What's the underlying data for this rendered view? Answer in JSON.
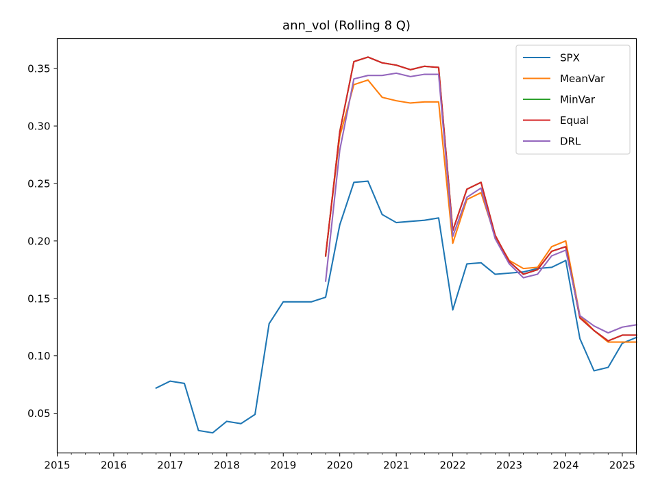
{
  "chart_data": {
    "type": "line",
    "title": "ann_vol (Rolling 8 Q)",
    "xlabel": "",
    "ylabel": "",
    "xlim": [
      2015.0,
      2025.25
    ],
    "ylim": [
      0.0155,
      0.376
    ],
    "x_ticks": [
      2015,
      2016,
      2017,
      2018,
      2019,
      2020,
      2021,
      2022,
      2023,
      2024,
      2025
    ],
    "y_ticks": [
      0.05,
      0.1,
      0.15,
      0.2,
      0.25,
      0.3,
      0.35
    ],
    "y_tick_labels": [
      "0.05",
      "0.10",
      "0.15",
      "0.20",
      "0.25",
      "0.30",
      "0.35"
    ],
    "grid": false,
    "legend_position": "top-right",
    "series": [
      {
        "name": "SPX",
        "color": "#1f77b4",
        "points": [
          [
            2016.75,
            0.072
          ],
          [
            2017.0,
            0.078
          ],
          [
            2017.25,
            0.076
          ],
          [
            2017.5,
            0.035
          ],
          [
            2017.75,
            0.033
          ],
          [
            2018.0,
            0.043
          ],
          [
            2018.25,
            0.041
          ],
          [
            2018.5,
            0.049
          ],
          [
            2018.75,
            0.128
          ],
          [
            2019.0,
            0.147
          ],
          [
            2019.25,
            0.147
          ],
          [
            2019.5,
            0.147
          ],
          [
            2019.75,
            0.151
          ],
          [
            2020.0,
            0.214
          ],
          [
            2020.25,
            0.251
          ],
          [
            2020.5,
            0.252
          ],
          [
            2020.75,
            0.223
          ],
          [
            2021.0,
            0.216
          ],
          [
            2021.25,
            0.217
          ],
          [
            2021.5,
            0.218
          ],
          [
            2021.75,
            0.22
          ],
          [
            2022.0,
            0.14
          ],
          [
            2022.25,
            0.18
          ],
          [
            2022.5,
            0.181
          ],
          [
            2022.75,
            0.171
          ],
          [
            2023.0,
            0.172
          ],
          [
            2023.25,
            0.173
          ],
          [
            2023.5,
            0.176
          ],
          [
            2023.75,
            0.177
          ],
          [
            2024.0,
            0.183
          ],
          [
            2024.25,
            0.115
          ],
          [
            2024.5,
            0.087
          ],
          [
            2024.75,
            0.09
          ],
          [
            2025.0,
            0.111
          ],
          [
            2025.25,
            0.116
          ]
        ]
      },
      {
        "name": "MeanVar",
        "color": "#ff7f0e",
        "points": [
          [
            2019.75,
            0.188
          ],
          [
            2020.0,
            0.291
          ],
          [
            2020.25,
            0.336
          ],
          [
            2020.5,
            0.34
          ],
          [
            2020.75,
            0.325
          ],
          [
            2021.0,
            0.322
          ],
          [
            2021.25,
            0.32
          ],
          [
            2021.5,
            0.321
          ],
          [
            2021.75,
            0.321
          ],
          [
            2022.0,
            0.198
          ],
          [
            2022.25,
            0.236
          ],
          [
            2022.5,
            0.242
          ],
          [
            2022.75,
            0.204
          ],
          [
            2023.0,
            0.183
          ],
          [
            2023.25,
            0.176
          ],
          [
            2023.5,
            0.177
          ],
          [
            2023.75,
            0.195
          ],
          [
            2024.0,
            0.2
          ],
          [
            2024.25,
            0.135
          ],
          [
            2024.5,
            0.122
          ],
          [
            2024.75,
            0.112
          ],
          [
            2025.0,
            0.112
          ],
          [
            2025.25,
            0.112
          ]
        ]
      },
      {
        "name": "MinVar",
        "color": "#2ca02c",
        "points": [
          [
            2019.75,
            0.187
          ],
          [
            2020.0,
            0.295
          ],
          [
            2020.25,
            0.356
          ],
          [
            2020.5,
            0.36
          ],
          [
            2020.75,
            0.355
          ],
          [
            2021.0,
            0.353
          ],
          [
            2021.25,
            0.349
          ],
          [
            2021.5,
            0.352
          ],
          [
            2021.75,
            0.351
          ],
          [
            2022.0,
            0.209
          ],
          [
            2022.25,
            0.245
          ],
          [
            2022.5,
            0.251
          ],
          [
            2022.75,
            0.205
          ],
          [
            2023.0,
            0.182
          ],
          [
            2023.25,
            0.171
          ],
          [
            2023.5,
            0.175
          ],
          [
            2023.75,
            0.191
          ],
          [
            2024.0,
            0.195
          ],
          [
            2024.25,
            0.133
          ],
          [
            2024.5,
            0.122
          ],
          [
            2024.75,
            0.113
          ],
          [
            2025.0,
            0.118
          ],
          [
            2025.25,
            0.118
          ]
        ]
      },
      {
        "name": "Equal",
        "color": "#d62728",
        "points": [
          [
            2019.75,
            0.187
          ],
          [
            2020.0,
            0.295
          ],
          [
            2020.25,
            0.356
          ],
          [
            2020.5,
            0.36
          ],
          [
            2020.75,
            0.355
          ],
          [
            2021.0,
            0.353
          ],
          [
            2021.25,
            0.349
          ],
          [
            2021.5,
            0.352
          ],
          [
            2021.75,
            0.351
          ],
          [
            2022.0,
            0.209
          ],
          [
            2022.25,
            0.245
          ],
          [
            2022.5,
            0.251
          ],
          [
            2022.75,
            0.205
          ],
          [
            2023.0,
            0.182
          ],
          [
            2023.25,
            0.171
          ],
          [
            2023.5,
            0.175
          ],
          [
            2023.75,
            0.191
          ],
          [
            2024.0,
            0.195
          ],
          [
            2024.25,
            0.133
          ],
          [
            2024.5,
            0.122
          ],
          [
            2024.75,
            0.113
          ],
          [
            2025.0,
            0.118
          ],
          [
            2025.25,
            0.118
          ]
        ]
      },
      {
        "name": "DRL",
        "color": "#9467bd",
        "points": [
          [
            2019.75,
            0.165
          ],
          [
            2020.0,
            0.279
          ],
          [
            2020.25,
            0.341
          ],
          [
            2020.5,
            0.344
          ],
          [
            2020.75,
            0.344
          ],
          [
            2021.0,
            0.346
          ],
          [
            2021.25,
            0.343
          ],
          [
            2021.5,
            0.345
          ],
          [
            2021.75,
            0.345
          ],
          [
            2022.0,
            0.204
          ],
          [
            2022.25,
            0.238
          ],
          [
            2022.5,
            0.246
          ],
          [
            2022.75,
            0.202
          ],
          [
            2023.0,
            0.18
          ],
          [
            2023.25,
            0.168
          ],
          [
            2023.5,
            0.171
          ],
          [
            2023.75,
            0.187
          ],
          [
            2024.0,
            0.192
          ],
          [
            2024.25,
            0.135
          ],
          [
            2024.5,
            0.126
          ],
          [
            2024.75,
            0.12
          ],
          [
            2025.0,
            0.125
          ],
          [
            2025.25,
            0.127
          ]
        ]
      }
    ]
  }
}
